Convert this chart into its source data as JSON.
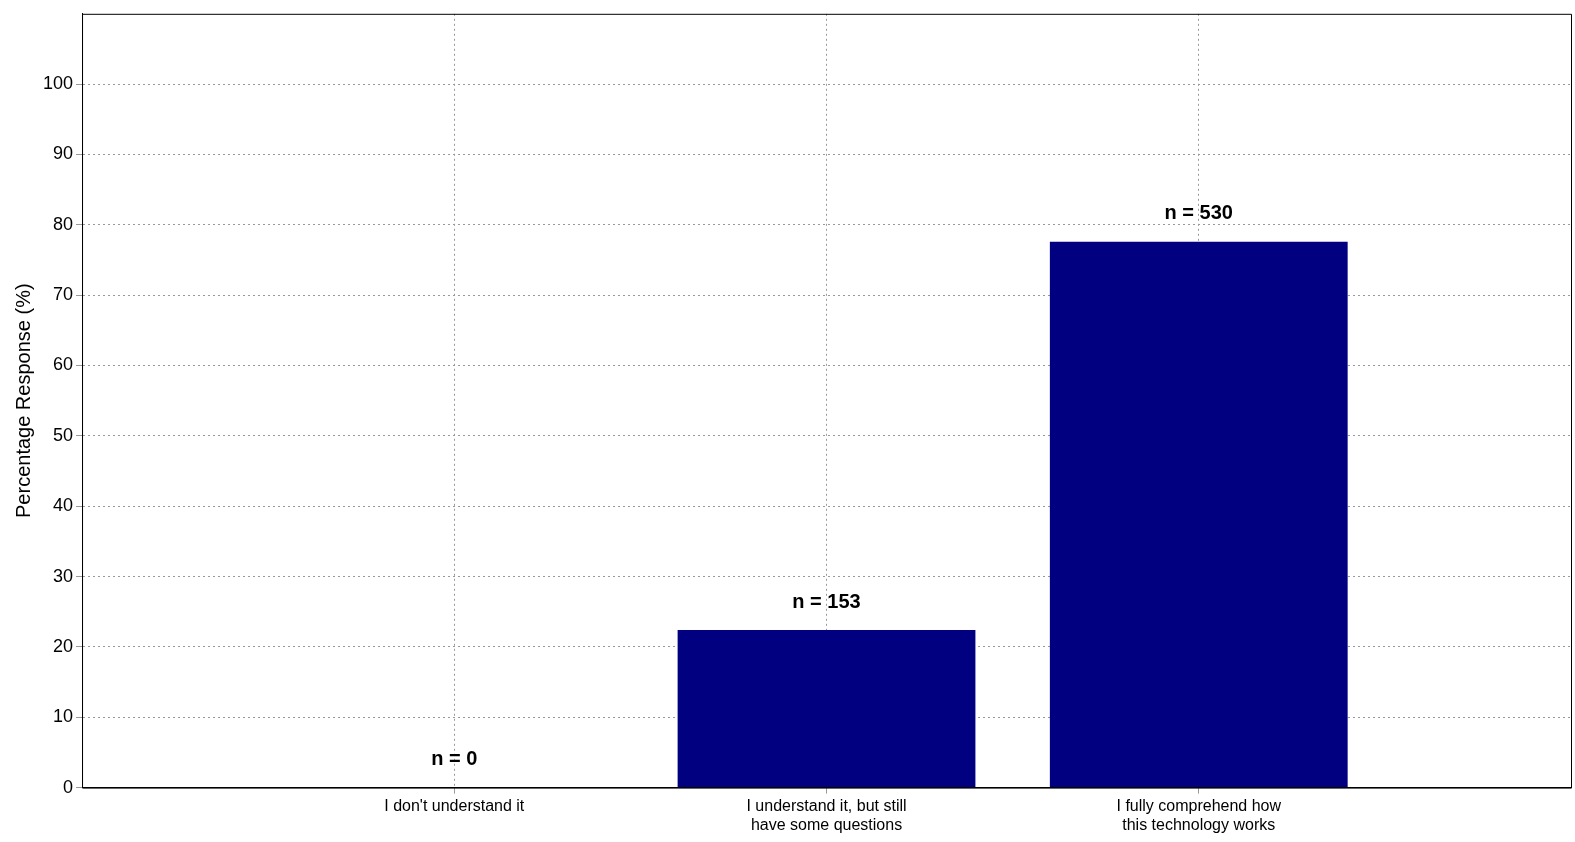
{
  "chart_data": {
    "type": "bar",
    "ylabel": "Percentage Response (%)",
    "categories": [
      "I don't understand it",
      "I understand it, but still have some questions",
      "I fully comprehend how this technology works"
    ],
    "values": [
      0,
      22.4,
      77.6
    ],
    "color": "#000080",
    "annotations": [
      {
        "text": "n = 0",
        "x": "I don't understand it",
        "y": 0
      },
      {
        "text": "n = 153",
        "x": "I understand it, but still have some questions",
        "y": 22.4
      },
      {
        "text": "n = 530",
        "x": "I fully comprehend how this technology works",
        "y": 77.6
      }
    ],
    "ylim": [
      0,
      110
    ],
    "yticks": [
      0,
      10,
      20,
      30,
      40,
      50,
      60,
      70,
      80,
      90,
      100
    ],
    "grid": true,
    "legend": false
  }
}
